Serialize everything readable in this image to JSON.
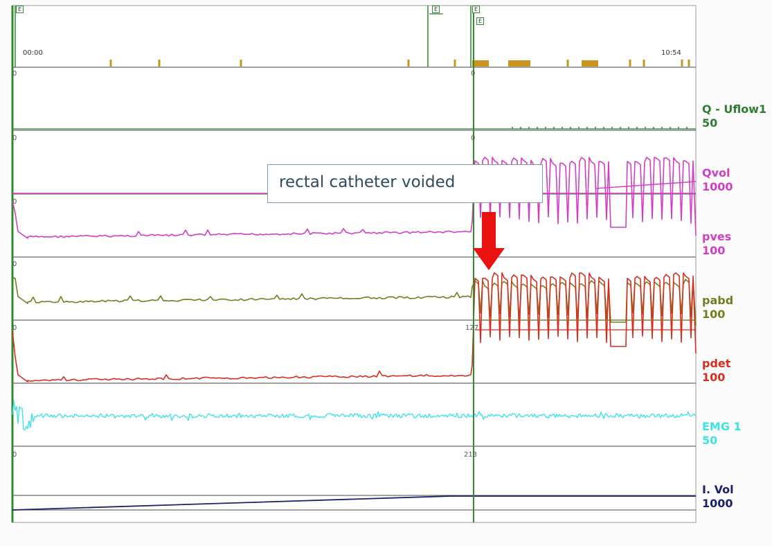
{
  "top_strip": {
    "time_start": "00:00",
    "time_end": "10:54",
    "marker_labels": [
      "E",
      "E",
      "E",
      "E"
    ]
  },
  "channels": [
    {
      "name": "Q - Uflow1",
      "scale": "50",
      "color": "#2e7d32"
    },
    {
      "name": "Qvol",
      "scale": "1000",
      "color": "#d23dc6"
    },
    {
      "name": "pves",
      "scale": "100",
      "color": "#d23dc6"
    },
    {
      "name": "pabd",
      "scale": "100",
      "color": "#6d7f1f"
    },
    {
      "name": "pdet",
      "scale": "100",
      "color": "#d92b1e"
    },
    {
      "name": "EMG 1",
      "scale": "50",
      "color": "#3fe3e6"
    },
    {
      "name": "I. Vol",
      "scale": "1000",
      "color": "#1a1f6e"
    }
  ],
  "axis_readouts": {
    "uflow_left": "0",
    "uflow_cursor": "0",
    "qvol_left": "0",
    "qvol_cursor": "0",
    "pves_left": "0",
    "pabd_left": "0",
    "pdet_left": "0",
    "pdet_cursor": "127",
    "ivol_left": "0",
    "ivol_cursor": "213"
  },
  "annotation": {
    "text": "rectal catheter voided",
    "arrow_color": "#e8130f"
  },
  "colors": {
    "cursor": "#2e8b2e",
    "gridline": "#6b6b6b",
    "event_marker": "#c8961e",
    "flow": "#2e7d32",
    "pves": "#d23dc6",
    "pabd": "#6d7f1f",
    "pdet": "#d92b1e",
    "emg": "#3fe3e6",
    "volume": "#1a1f6e"
  },
  "chart_data": {
    "type": "line",
    "x_range": [
      "00:00",
      "10:54"
    ],
    "series": [
      {
        "name": "Q - Uflow1"
      },
      {
        "name": "Qvol"
      },
      {
        "name": "pves"
      },
      {
        "name": "pabd"
      },
      {
        "name": "pdet"
      },
      {
        "name": "EMG 1"
      },
      {
        "name": "I. Vol"
      }
    ],
    "grid": true
  }
}
